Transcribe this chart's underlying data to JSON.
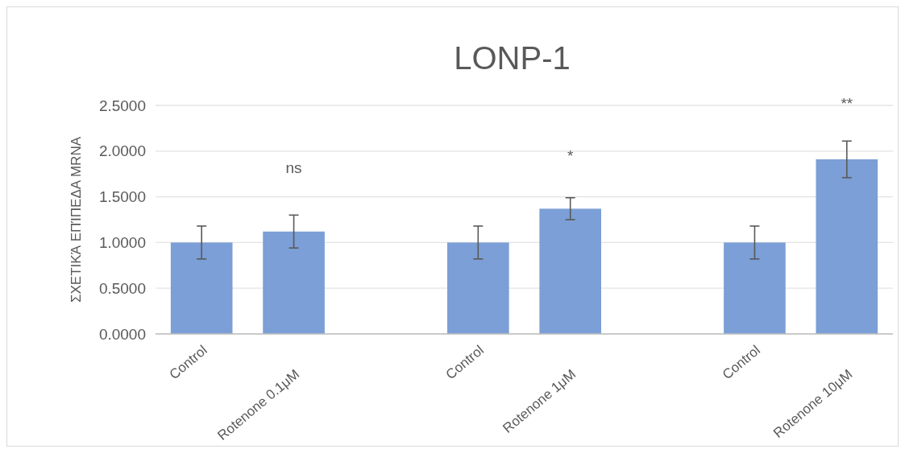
{
  "chart_data": {
    "type": "bar",
    "title": "LONP-1",
    "ylabel": "ΣΧΕΤΙΚΆ ΕΠΊΠΕΔΑ MRNA",
    "categories": [
      "Control",
      "Rotenone 0.1μM",
      null,
      "Control",
      "Rotenone 1μM",
      null,
      "Control",
      "Rotenone 10μM"
    ],
    "values": [
      1.0,
      1.12,
      null,
      1.0,
      1.37,
      null,
      1.0,
      1.91
    ],
    "errors": [
      0.18,
      0.18,
      null,
      0.18,
      0.12,
      null,
      0.18,
      0.2
    ],
    "color": "#7b9fd6",
    "ylim": [
      0,
      2.5
    ],
    "yticks": [
      {
        "value": 0,
        "label": "0.0000"
      },
      {
        "value": 0.5,
        "label": "0.5000"
      },
      {
        "value": 1,
        "label": "1.0000"
      },
      {
        "value": 1.5,
        "label": "1.5000"
      },
      {
        "value": 2,
        "label": "2.0000"
      },
      {
        "value": 2.5,
        "label": "2.5000"
      }
    ],
    "grid": "y",
    "annotations": [
      "ns",
      "*",
      "**"
    ]
  }
}
